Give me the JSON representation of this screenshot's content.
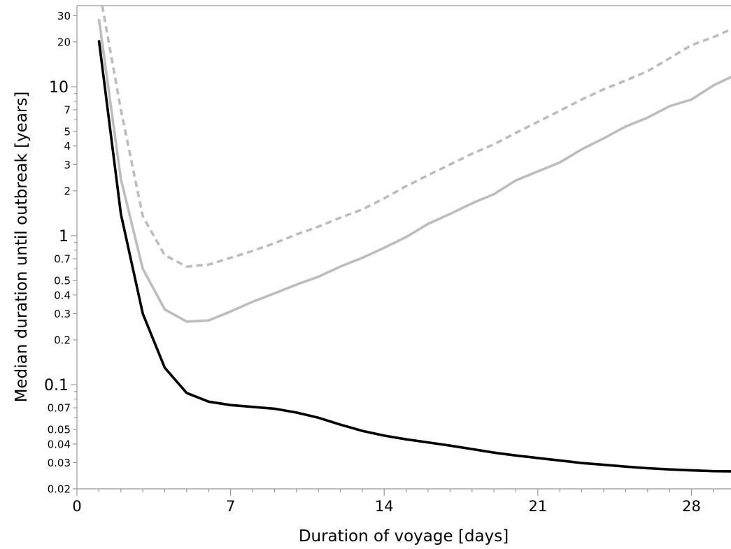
{
  "chart_data": {
    "type": "line",
    "title": "",
    "xlabel": "Duration of voyage [days]",
    "ylabel": "Median duration until outbreak [years]",
    "x_scale": "linear",
    "y_scale": "log",
    "xlim": [
      0,
      29.8
    ],
    "ylim": [
      0.02,
      35
    ],
    "grid": false,
    "legend": "none",
    "x_ticks": [
      {
        "value": 0,
        "label": "0"
      },
      {
        "value": 7,
        "label": "7"
      },
      {
        "value": 14,
        "label": "14"
      },
      {
        "value": 21,
        "label": "21"
      },
      {
        "value": 28,
        "label": "28"
      }
    ],
    "y_ticks": [
      {
        "value": 0.02,
        "label": "0.02",
        "major": false
      },
      {
        "value": 0.03,
        "label": "0.03",
        "major": false
      },
      {
        "value": 0.04,
        "label": "0.04",
        "major": false
      },
      {
        "value": 0.05,
        "label": "0.05",
        "major": false
      },
      {
        "value": 0.07,
        "label": "0.07",
        "major": false
      },
      {
        "value": 0.1,
        "label": "0.1",
        "major": true
      },
      {
        "value": 0.2,
        "label": "0.2",
        "major": false
      },
      {
        "value": 0.3,
        "label": "0.3",
        "major": false
      },
      {
        "value": 0.4,
        "label": "0.4",
        "major": false
      },
      {
        "value": 0.5,
        "label": "0.5",
        "major": false
      },
      {
        "value": 0.7,
        "label": "0.7",
        "major": false
      },
      {
        "value": 1,
        "label": "1",
        "major": true
      },
      {
        "value": 2,
        "label": "2",
        "major": false
      },
      {
        "value": 3,
        "label": "3",
        "major": false
      },
      {
        "value": 4,
        "label": "4",
        "major": false
      },
      {
        "value": 5,
        "label": "5",
        "major": false
      },
      {
        "value": 7,
        "label": "7",
        "major": false
      },
      {
        "value": 10,
        "label": "10",
        "major": true
      },
      {
        "value": 20,
        "label": "20",
        "major": false
      },
      {
        "value": 30,
        "label": "30",
        "major": false
      }
    ],
    "x_minor_ticks": [
      1,
      2,
      3,
      4,
      5,
      6,
      8,
      9,
      10,
      11,
      12,
      13,
      15,
      16,
      17,
      18,
      19,
      20,
      22,
      23,
      24,
      25,
      26,
      27,
      29
    ],
    "y_unlabeled_ticks": [
      0.06,
      0.08,
      0.09,
      0.6,
      0.8,
      0.9,
      6,
      8,
      9
    ],
    "series": [
      {
        "color": "#000000",
        "dash": "solid",
        "x": [
          1,
          2,
          3,
          4,
          5,
          6,
          7,
          8,
          9,
          10,
          11,
          12,
          13,
          14,
          15,
          16,
          17,
          18,
          19,
          20,
          21,
          22,
          23,
          24,
          25,
          26,
          27,
          28,
          29,
          30
        ],
        "values": [
          20.5,
          1.4,
          0.3,
          0.13,
          0.088,
          0.077,
          0.073,
          0.071,
          0.069,
          0.065,
          0.06,
          0.054,
          0.049,
          0.0455,
          0.043,
          0.041,
          0.039,
          0.037,
          0.035,
          0.0335,
          0.0322,
          0.031,
          0.0298,
          0.029,
          0.0282,
          0.0275,
          0.027,
          0.0266,
          0.0263,
          0.0262
        ]
      },
      {
        "color": "#bdbdbd",
        "dash": "solid",
        "x": [
          1,
          2,
          3,
          4,
          5,
          6,
          7,
          8,
          9,
          10,
          11,
          12,
          13,
          14,
          15,
          16,
          17,
          18,
          19,
          20,
          21,
          22,
          23,
          24,
          25,
          26,
          27,
          28,
          29,
          30
        ],
        "values": [
          28.5,
          2.4,
          0.6,
          0.32,
          0.265,
          0.27,
          0.31,
          0.36,
          0.41,
          0.47,
          0.53,
          0.62,
          0.71,
          0.83,
          0.98,
          1.2,
          1.4,
          1.65,
          1.9,
          2.35,
          2.7,
          3.1,
          3.8,
          4.5,
          5.4,
          6.2,
          7.4,
          8.2,
          10.2,
          12.0
        ]
      },
      {
        "color": "#bdbdbd",
        "dash": "dashed",
        "x": [
          1.15,
          2,
          3,
          4,
          5,
          6,
          7,
          8,
          9,
          10,
          11,
          12,
          13,
          14,
          15,
          16,
          17,
          18,
          19,
          20,
          21,
          22,
          23,
          24,
          25,
          26,
          27,
          28,
          29,
          30
        ],
        "values": [
          35,
          7.0,
          1.35,
          0.74,
          0.62,
          0.64,
          0.71,
          0.79,
          0.89,
          1.02,
          1.15,
          1.32,
          1.5,
          1.78,
          2.15,
          2.55,
          3.0,
          3.55,
          4.1,
          4.9,
          5.8,
          6.9,
          8.2,
          9.6,
          11.0,
          12.7,
          15.5,
          19.0,
          21.5,
          25.0
        ]
      }
    ]
  }
}
